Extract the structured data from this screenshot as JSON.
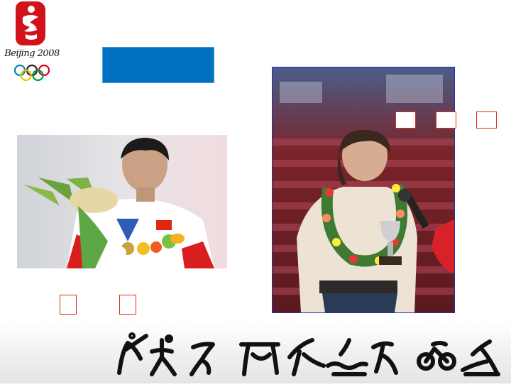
{
  "emblem": {
    "caption": "Beijing 2008",
    "ring_colors": [
      "#0085c7",
      "#222222",
      "#df0024",
      "#f4c300",
      "#009f3d"
    ]
  },
  "colors": {
    "accent_blue": "#0070c0",
    "box_outline": "#e12a1a",
    "emblem_red": "#d2121b"
  },
  "photos": {
    "left": "athlete-with-flowers-and-medal",
    "right": "woman-with-trophy-and-garland"
  },
  "pictograms": [
    "shooting-icon",
    "wrestling-icon",
    "gymnastics-icon",
    "weightlifting-icon",
    "taekwondo-icon",
    "swimming-icon",
    "running-icon",
    "cycling-icon",
    "rowing-icon"
  ]
}
